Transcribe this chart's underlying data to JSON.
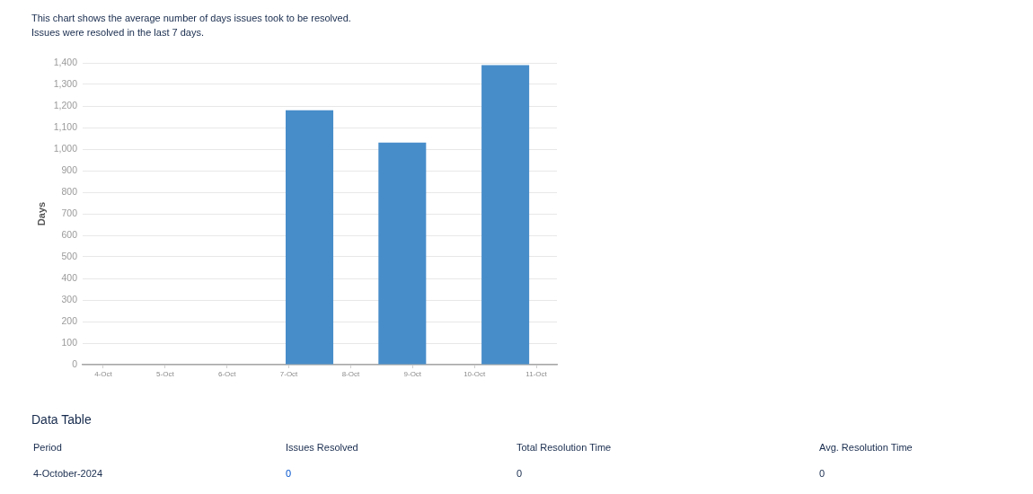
{
  "chart_data": {
    "type": "bar",
    "title": "This chart shows the average number of days issues took to be resolved.",
    "subtitle": "Issues were resolved in the last 7 days.",
    "ylabel": "Days",
    "x": [
      "2024-10-07T08:00",
      "2024-10-08T20:00",
      "2024-10-10T12:00"
    ],
    "values": [
      1180,
      1030,
      1390
    ],
    "color": "#478dca",
    "xlim": [
      "2024-10-03T16:00",
      "2024-10-11T08:00"
    ],
    "xticks": [
      {
        "value": "2024-10-04",
        "label": "4-Oct"
      },
      {
        "value": "2024-10-05",
        "label": "5-Oct"
      },
      {
        "value": "2024-10-06",
        "label": "6-Oct"
      },
      {
        "value": "2024-10-07",
        "label": "7-Oct"
      },
      {
        "value": "2024-10-08",
        "label": "8-Oct"
      },
      {
        "value": "2024-10-09",
        "label": "9-Oct"
      },
      {
        "value": "2024-10-10",
        "label": "10-Oct"
      },
      {
        "value": "2024-10-11",
        "label": "11-Oct"
      }
    ],
    "ylim": [
      0,
      1400
    ],
    "yticks": [
      0,
      100,
      200,
      300,
      400,
      500,
      600,
      700,
      800,
      900,
      {
        "value": 1000,
        "label": "1,000"
      },
      {
        "value": 1100,
        "label": "1,100"
      },
      {
        "value": 1200,
        "label": "1,200"
      },
      {
        "value": 1300,
        "label": "1,300"
      },
      {
        "value": 1400,
        "label": "1,400"
      }
    ],
    "grid": "y",
    "legend": false,
    "annotations": [
      "Data Table",
      "Period",
      "Issues Resolved",
      "Total Resolution Time",
      "Avg. Resolution Time",
      "4-October-2024",
      "0",
      "0",
      "0"
    ]
  }
}
